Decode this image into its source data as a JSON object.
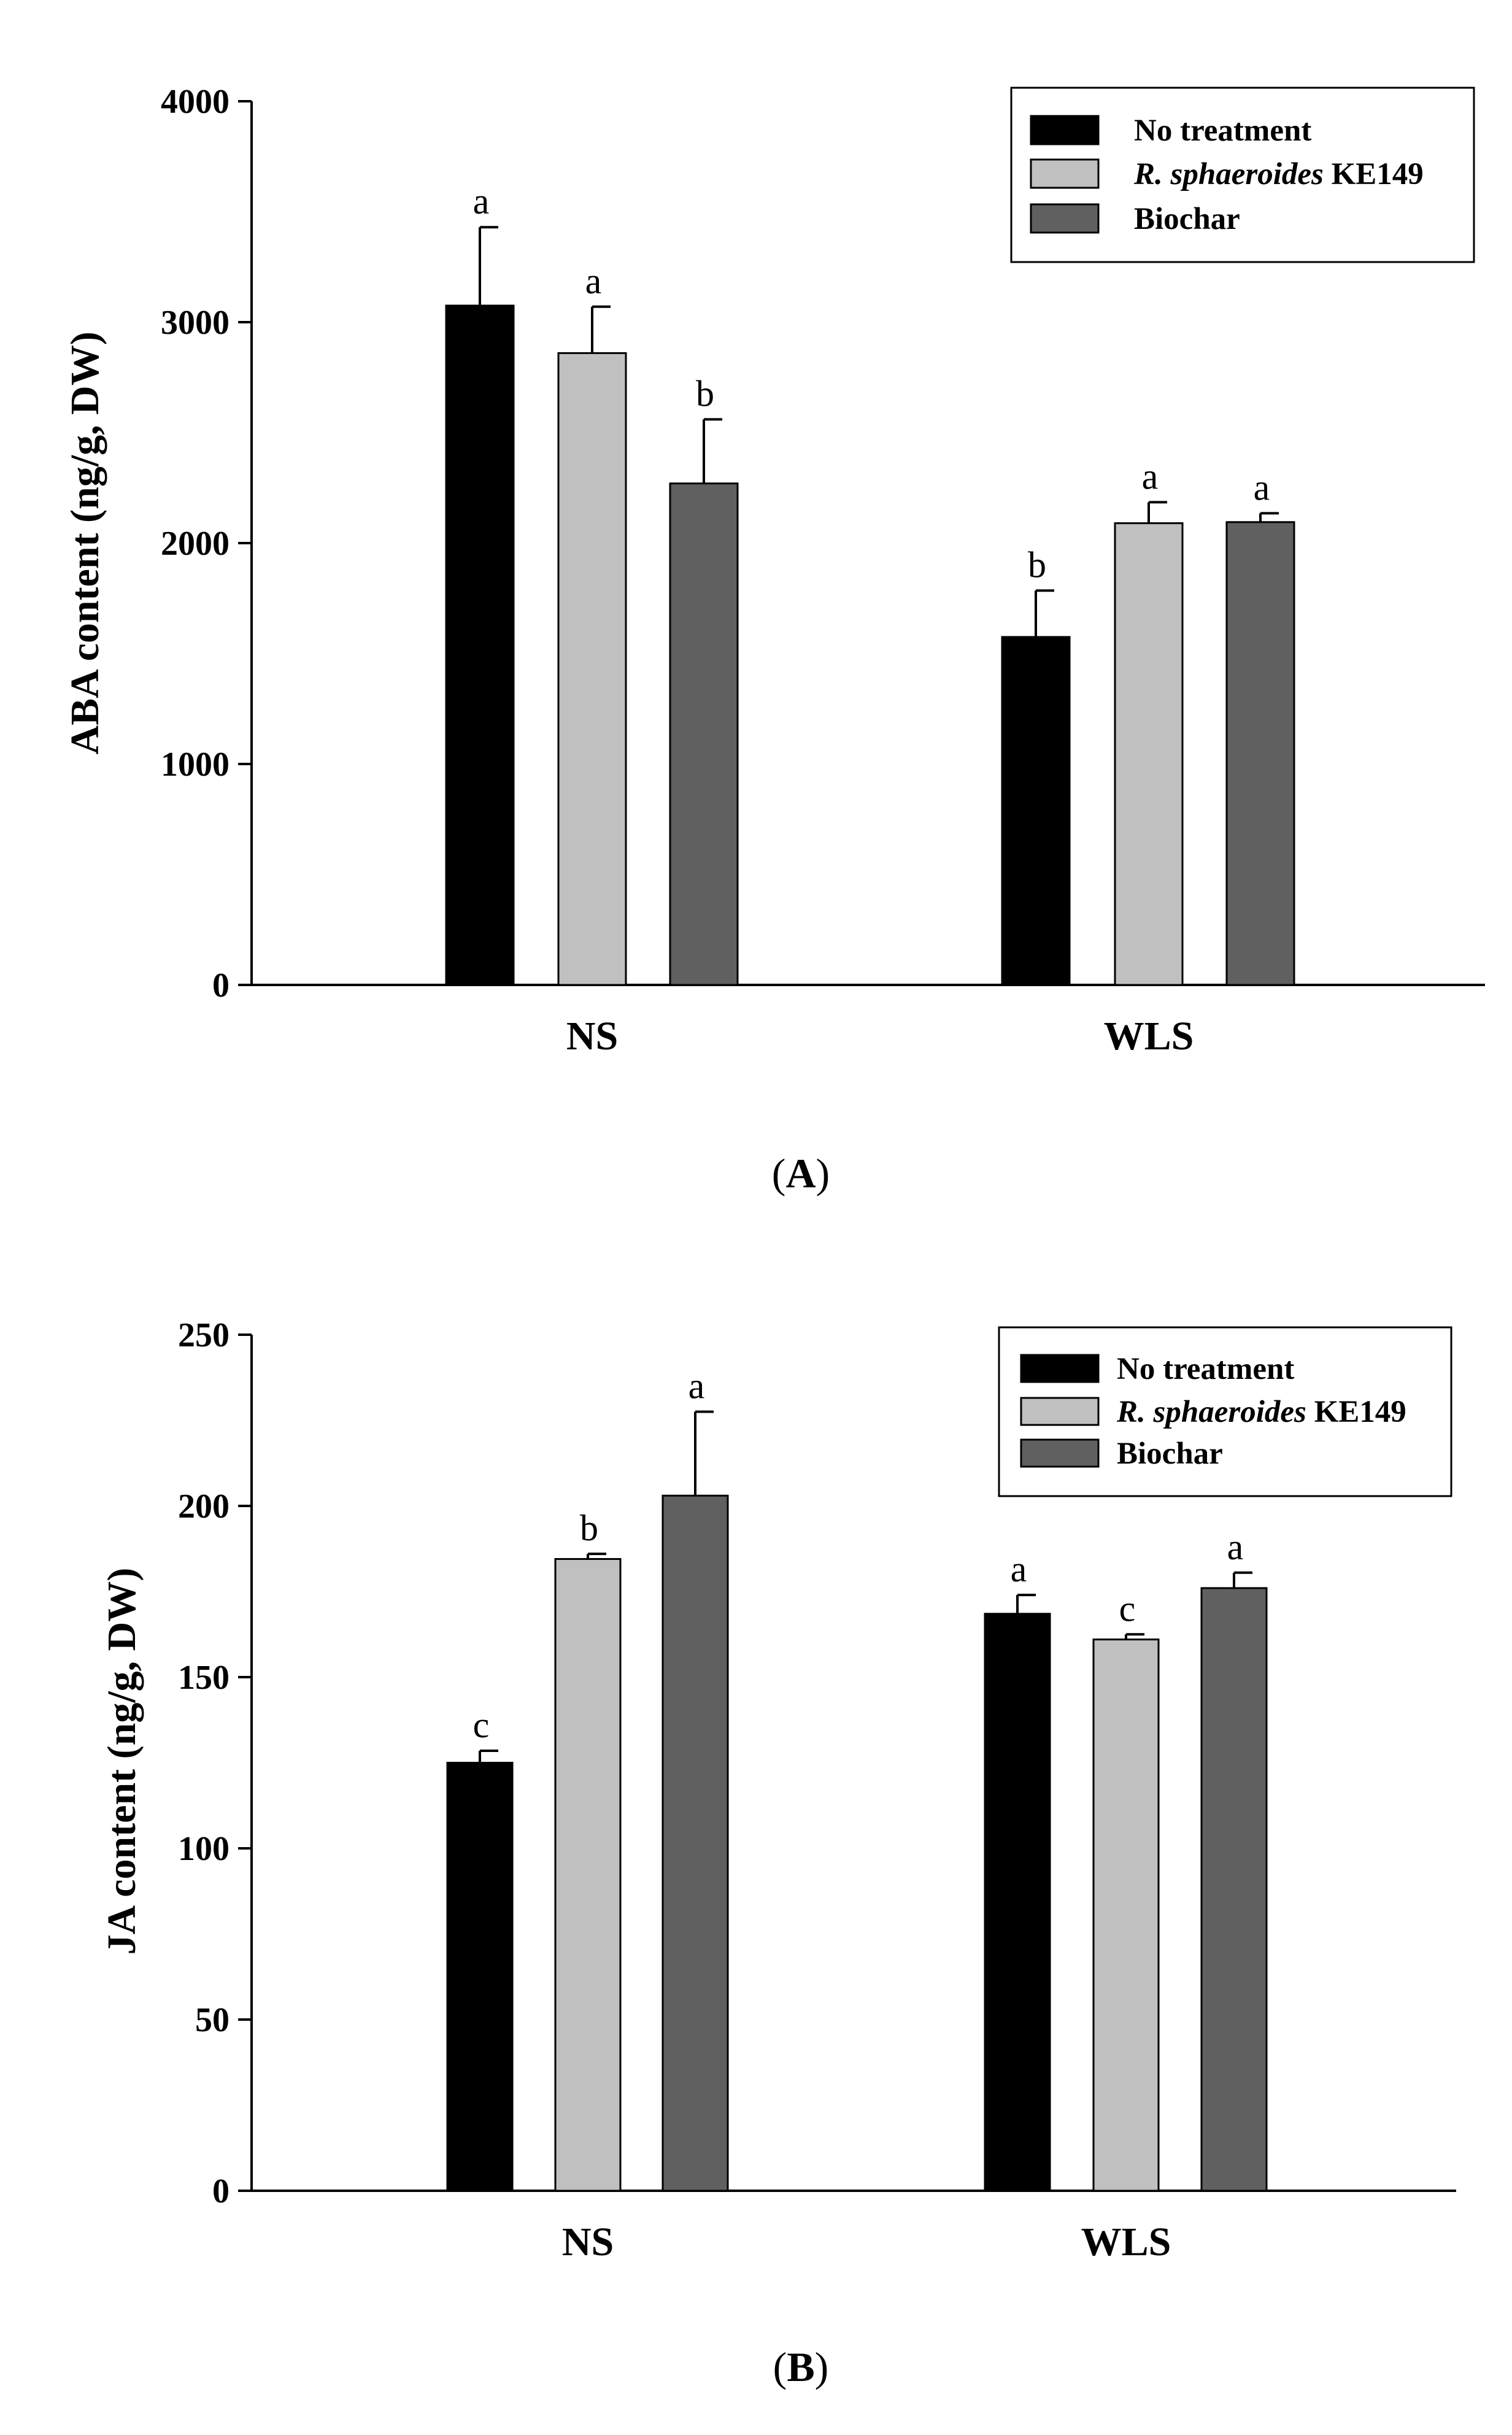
{
  "chart_data": [
    {
      "type": "bar",
      "panel_label": "A",
      "ylabel": "ABA content (ng/g, DW)",
      "xlabel": "",
      "ylim": [
        0,
        4000
      ],
      "yticks": [
        0,
        1000,
        2000,
        3000,
        4000
      ],
      "categories": [
        "NS",
        "WLS"
      ],
      "legend_position": "top-right",
      "series": [
        {
          "name": "No treatment",
          "name_italic": "",
          "name_rest": "No treatment",
          "color": "#000000",
          "values": [
            3075,
            1575
          ],
          "errors": [
            355,
            210
          ],
          "letters": [
            "a",
            "b"
          ]
        },
        {
          "name": "R. sphaeroides KE149",
          "name_italic": "R. sphaeroides",
          "name_rest": " KE149",
          "color": "#c0c0c0",
          "values": [
            2860,
            2090
          ],
          "errors": [
            210,
            95
          ],
          "letters": [
            "a",
            "a"
          ]
        },
        {
          "name": "Biochar",
          "name_italic": "",
          "name_rest": "Biochar",
          "color": "#606060",
          "values": [
            2270,
            2095
          ],
          "errors": [
            290,
            40
          ],
          "letters": [
            "b",
            "a"
          ]
        }
      ]
    },
    {
      "type": "bar",
      "panel_label": "B",
      "ylabel": "JA content (ng/g, DW)",
      "xlabel": "",
      "ylim": [
        0,
        250
      ],
      "yticks": [
        0,
        50,
        100,
        150,
        200,
        250
      ],
      "categories": [
        "NS",
        "WLS"
      ],
      "legend_position": "top-right",
      "series": [
        {
          "name": "No treatment",
          "name_italic": "",
          "name_rest": "No treatment",
          "color": "#000000",
          "values": [
            125,
            168.5
          ],
          "errors": [
            3.5,
            5.5
          ],
          "letters": [
            "c",
            "a"
          ]
        },
        {
          "name": "R. sphaeroides KE149",
          "name_italic": "R. sphaeroides",
          "name_rest": " KE149",
          "color": "#c0c0c0",
          "values": [
            184.5,
            161
          ],
          "errors": [
            1.5,
            1.5
          ],
          "letters": [
            "b",
            "c"
          ]
        },
        {
          "name": "Biochar",
          "name_italic": "",
          "name_rest": "Biochar",
          "color": "#606060",
          "values": [
            203,
            176
          ],
          "errors": [
            24.5,
            4.5
          ],
          "letters": [
            "a",
            "a"
          ]
        }
      ]
    }
  ]
}
